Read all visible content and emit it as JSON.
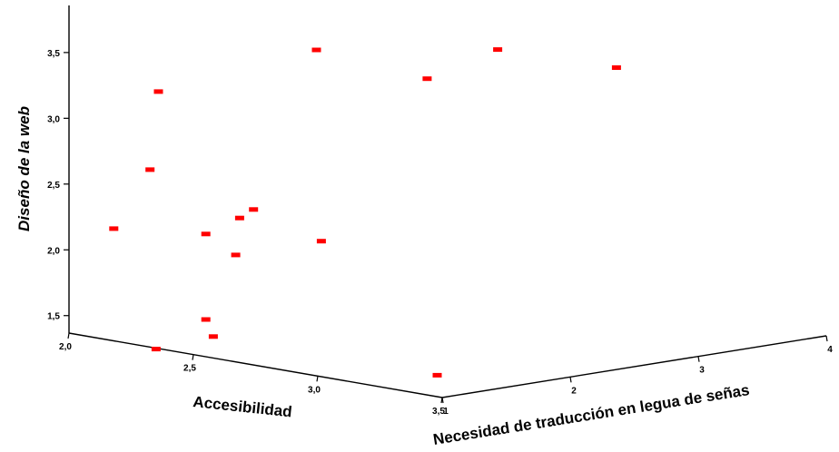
{
  "chart_data": {
    "type": "scatter",
    "title": "",
    "xlabel": "Accesibilidad",
    "zlabel": "Necesidad de traducción en legua de señas",
    "ylabel": "Diseño de la web",
    "x_ticks": [
      "2,0",
      "2,5",
      "3,0",
      "3,5"
    ],
    "z_ticks": [
      "1",
      "2",
      "3",
      "4"
    ],
    "y_ticks": [
      "1,5",
      "2,0",
      "2,5",
      "3,0",
      "3,5"
    ],
    "xlim": [
      2.0,
      3.5
    ],
    "zlim": [
      1,
      4
    ],
    "ylim": [
      1.5,
      3.5
    ],
    "marker_color": "#ff0000",
    "points": [
      {
        "accesibilidad": 3.27,
        "necesidad": 1.88,
        "diseno": 3.8
      },
      {
        "accesibilidad": 3.48,
        "necesidad": 2.4,
        "diseno": 3.65
      },
      {
        "accesibilidad": 2.93,
        "necesidad": 1.99,
        "diseno": 3.45
      },
      {
        "accesibilidad": 2.48,
        "necesidad": 2.0,
        "diseno": 3.52
      },
      {
        "accesibilidad": 2.86,
        "necesidad": 1.3,
        "diseno": 2.3
      },
      {
        "accesibilidad": 2.68,
        "necesidad": 1.12,
        "diseno": 2.51
      },
      {
        "accesibilidad": 2.66,
        "necesidad": 1.05,
        "diseno": 2.45
      },
      {
        "accesibilidad": 2.67,
        "necesidad": 1.0,
        "diseno": 2.18
      },
      {
        "accesibilidad": 2.2,
        "necesidad": 1.31,
        "diseno": 3.22
      },
      {
        "accesibilidad": 2.3,
        "necesidad": 1.05,
        "diseno": 2.7
      },
      {
        "accesibilidad": 2.55,
        "necesidad": 1.0,
        "diseno": 2.3
      },
      {
        "accesibilidad": 2.35,
        "necesidad": 1.0,
        "diseno": 1.36
      },
      {
        "accesibilidad": 3.48,
        "necesidad": 1.0,
        "diseno": 1.53
      },
      {
        "accesibilidad": 2.18,
        "necesidad": 1.0,
        "diseno": 2.22
      },
      {
        "accesibilidad": 2.55,
        "necesidad": 1.0,
        "diseno": 1.65
      },
      {
        "accesibilidad": 2.58,
        "necesidad": 1.0,
        "diseno": 1.53
      }
    ]
  }
}
